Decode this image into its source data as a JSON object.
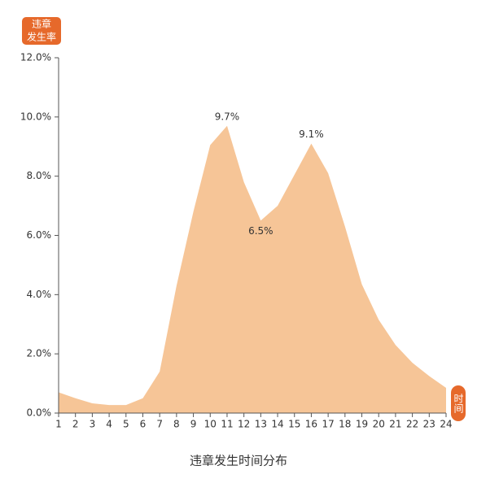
{
  "chart_data": {
    "type": "area",
    "title": "违章发生时间分布",
    "y_label_lines": [
      "违章",
      "发生率"
    ],
    "x_label": "时间",
    "x": [
      1,
      2,
      3,
      4,
      5,
      6,
      7,
      8,
      9,
      10,
      11,
      12,
      13,
      14,
      15,
      16,
      17,
      18,
      19,
      20,
      21,
      22,
      23,
      24
    ],
    "xlim": [
      1,
      24
    ],
    "values": [
      0.7,
      0.5,
      0.33,
      0.27,
      0.27,
      0.5,
      1.4,
      4.3,
      6.8,
      9.05,
      9.7,
      7.8,
      6.5,
      7.0,
      8.05,
      9.1,
      8.1,
      6.3,
      4.35,
      3.15,
      2.3,
      1.7,
      1.25,
      0.85
    ],
    "value_labels": [
      null,
      null,
      null,
      null,
      null,
      null,
      null,
      null,
      null,
      null,
      "9.7%",
      null,
      "6.5%",
      null,
      null,
      "9.1%",
      null,
      null,
      null,
      null,
      null,
      null,
      null,
      null
    ],
    "color": "#f6c597",
    "badge_color": "#e6692b",
    "ylim": [
      0,
      12
    ],
    "yticks": [
      {
        "value": 0,
        "label": "0.0%"
      },
      {
        "value": 2,
        "label": "2.0%"
      },
      {
        "value": 4,
        "label": "4.0%"
      },
      {
        "value": 6,
        "label": "6.0%"
      },
      {
        "value": 8,
        "label": "8.0%"
      },
      {
        "value": 10,
        "label": "10.0%"
      },
      {
        "value": 12,
        "label": "12.0%"
      }
    ]
  }
}
